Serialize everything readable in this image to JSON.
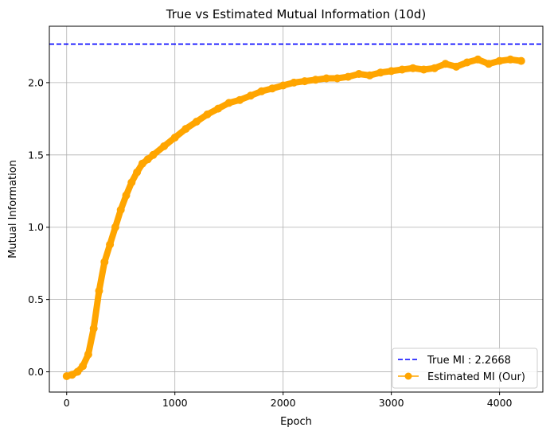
{
  "chart_data": {
    "type": "line",
    "title": "True vs Estimated Mutual Information (10d)",
    "xlabel": "Epoch",
    "ylabel": "Mutual Information",
    "xlim": [
      -160,
      4400
    ],
    "ylim": [
      -0.14,
      2.39
    ],
    "xticks": [
      0,
      1000,
      2000,
      3000,
      4000
    ],
    "yticks": [
      0.0,
      0.5,
      1.0,
      1.5,
      2.0
    ],
    "xtick_labels": [
      "0",
      "1000",
      "2000",
      "3000",
      "4000"
    ],
    "ytick_labels": [
      "0.0",
      "0.5",
      "1.0",
      "1.5",
      "2.0"
    ],
    "grid": true,
    "legend_position": "lower-right",
    "colors": {
      "true_mi": "#0000ff",
      "estimated": "#ffa500",
      "grid": "#b0b0b0"
    },
    "series": [
      {
        "name": "True MI : 2.2668",
        "style": "dashed-line",
        "value": 2.2668
      },
      {
        "name": "Estimated MI (Our)",
        "style": "line-with-circle-markers",
        "x": [
          0,
          50,
          100,
          150,
          200,
          250,
          300,
          350,
          400,
          450,
          500,
          550,
          600,
          650,
          700,
          750,
          800,
          900,
          1000,
          1100,
          1200,
          1300,
          1400,
          1500,
          1600,
          1700,
          1800,
          1900,
          2000,
          2100,
          2200,
          2300,
          2400,
          2500,
          2600,
          2700,
          2800,
          2900,
          3000,
          3100,
          3200,
          3300,
          3400,
          3500,
          3600,
          3700,
          3800,
          3900,
          4000,
          4100,
          4200
        ],
        "y": [
          -0.03,
          -0.02,
          0.0,
          0.04,
          0.12,
          0.3,
          0.56,
          0.76,
          0.88,
          1.0,
          1.12,
          1.22,
          1.31,
          1.38,
          1.44,
          1.47,
          1.5,
          1.56,
          1.62,
          1.68,
          1.73,
          1.78,
          1.82,
          1.86,
          1.88,
          1.91,
          1.94,
          1.96,
          1.98,
          2.0,
          2.01,
          2.02,
          2.03,
          2.03,
          2.04,
          2.06,
          2.05,
          2.07,
          2.08,
          2.09,
          2.1,
          2.09,
          2.1,
          2.13,
          2.11,
          2.14,
          2.16,
          2.13,
          2.15,
          2.16,
          2.15
        ]
      }
    ]
  }
}
